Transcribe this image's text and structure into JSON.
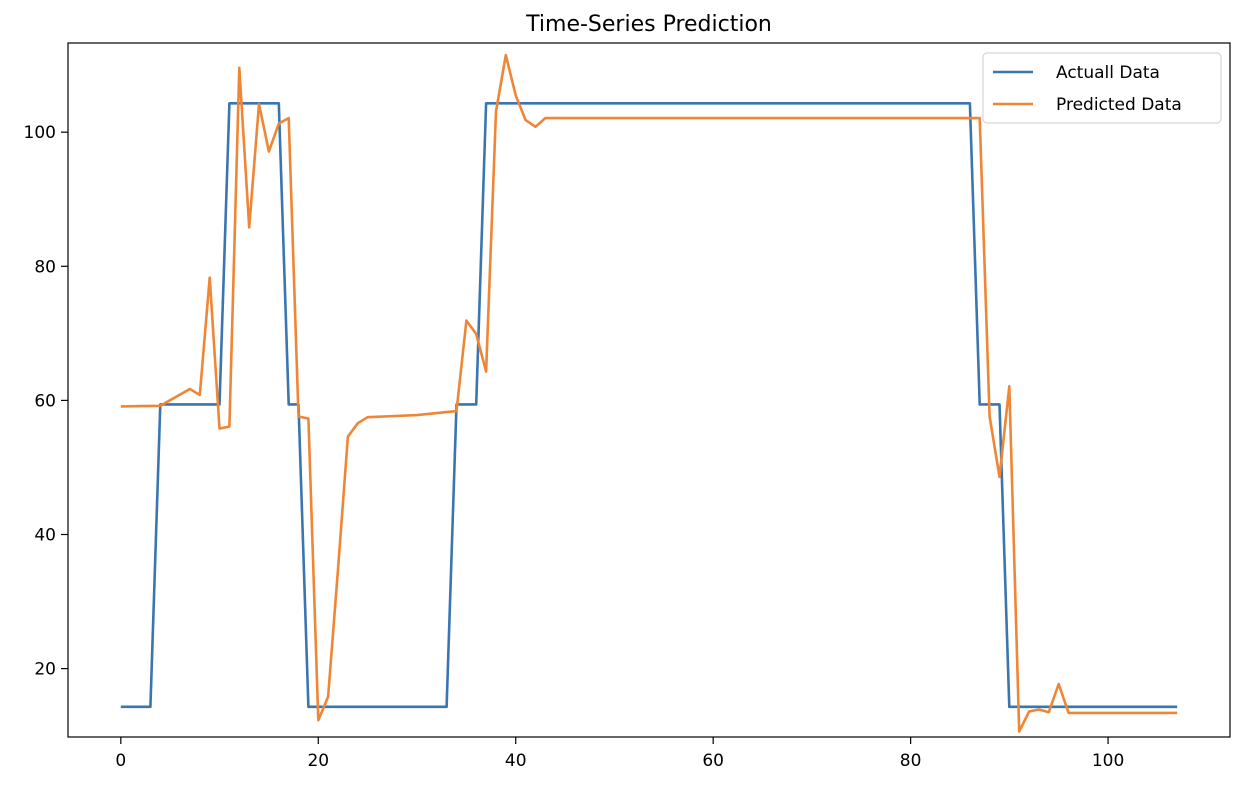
{
  "chart_data": {
    "type": "line",
    "title": "Time-Series Prediction",
    "xlabel": "",
    "ylabel": "",
    "xlim": [
      -5.35,
      112.35
    ],
    "ylim": [
      9.8,
      113.3
    ],
    "xticks": [
      0,
      20,
      40,
      60,
      80,
      100
    ],
    "yticks": [
      20,
      40,
      60,
      80,
      100
    ],
    "grid": false,
    "legend_position": "top-right",
    "series": [
      {
        "name": "Actuall Data",
        "color": "#3b75af",
        "points": [
          [
            0,
            14.3
          ],
          [
            3,
            14.3
          ],
          [
            4,
            59.4
          ],
          [
            10,
            59.4
          ],
          [
            11,
            104.3
          ],
          [
            16,
            104.3
          ],
          [
            17,
            59.4
          ],
          [
            18,
            59.4
          ],
          [
            19,
            14.3
          ],
          [
            33,
            14.3
          ],
          [
            34,
            59.4
          ],
          [
            36,
            59.4
          ],
          [
            37,
            104.3
          ],
          [
            86,
            104.3
          ],
          [
            87,
            59.4
          ],
          [
            89,
            59.4
          ],
          [
            90,
            14.3
          ],
          [
            107,
            14.3
          ]
        ]
      },
      {
        "name": "Predicted Data",
        "color": "#ef8636",
        "points": [
          [
            0,
            59.1
          ],
          [
            4,
            59.2
          ],
          [
            7,
            61.7
          ],
          [
            8,
            60.8
          ],
          [
            9,
            78.3
          ],
          [
            10,
            55.8
          ],
          [
            11,
            56.1
          ],
          [
            12,
            109.6
          ],
          [
            13,
            85.8
          ],
          [
            14,
            104.2
          ],
          [
            15,
            97.1
          ],
          [
            16,
            101.3
          ],
          [
            17,
            102.1
          ],
          [
            18,
            57.6
          ],
          [
            19,
            57.3
          ],
          [
            20,
            12.3
          ],
          [
            21,
            15.8
          ],
          [
            22,
            34.8
          ],
          [
            23,
            54.6
          ],
          [
            24,
            56.6
          ],
          [
            25,
            57.5
          ],
          [
            30,
            57.8
          ],
          [
            34,
            58.4
          ],
          [
            35,
            71.9
          ],
          [
            36,
            69.9
          ],
          [
            37,
            64.3
          ],
          [
            38,
            103.1
          ],
          [
            39,
            111.5
          ],
          [
            40,
            105.5
          ],
          [
            41,
            101.8
          ],
          [
            42,
            100.8
          ],
          [
            43,
            102.1
          ],
          [
            87,
            102.1
          ],
          [
            88,
            57.6
          ],
          [
            89,
            48.6
          ],
          [
            90,
            62.1
          ],
          [
            91,
            10.6
          ],
          [
            92,
            13.6
          ],
          [
            93,
            13.9
          ],
          [
            94,
            13.5
          ],
          [
            95,
            17.7
          ],
          [
            96,
            13.4
          ],
          [
            107,
            13.4
          ]
        ]
      }
    ]
  }
}
